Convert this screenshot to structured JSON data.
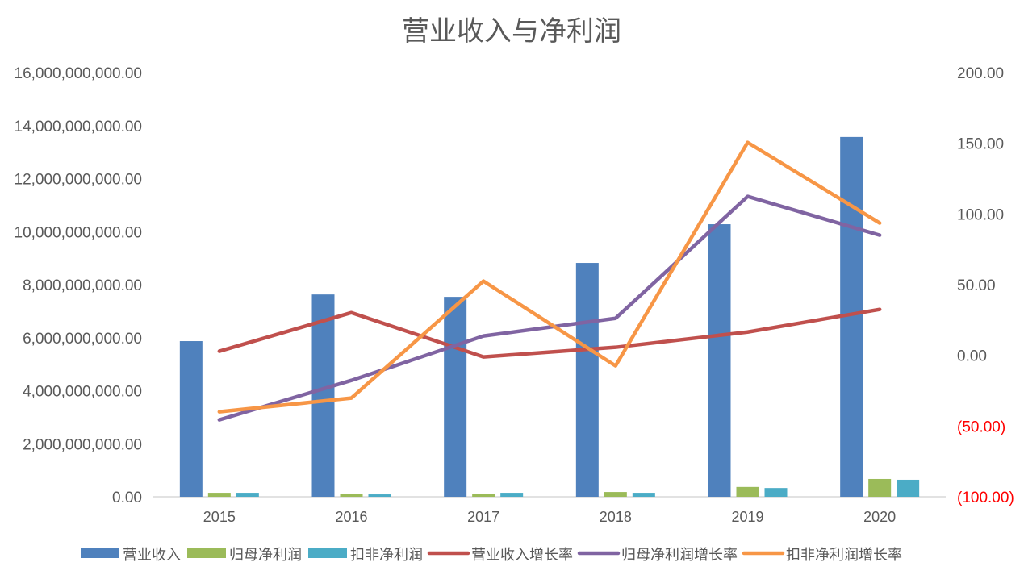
{
  "chart_data": {
    "type": "bar+line",
    "title": "营业收入与净利润",
    "categories": [
      "2015",
      "2016",
      "2017",
      "2018",
      "2019",
      "2020"
    ],
    "y_left": {
      "range": [
        0,
        16000000000
      ],
      "ticks": [
        "0.00",
        "2,000,000,000.00",
        "4,000,000,000.00",
        "6,000,000,000.00",
        "8,000,000,000.00",
        "10,000,000,000.00",
        "12,000,000,000.00",
        "14,000,000,000.00",
        "16,000,000,000.00"
      ]
    },
    "y_right": {
      "range": [
        -100,
        200
      ],
      "ticks": [
        "(100.00)",
        "(50.00)",
        "0.00",
        "50.00",
        "100.00",
        "150.00",
        "200.00"
      ],
      "negative_color": "#ff0000"
    },
    "grid": false,
    "legend_position": "bottom",
    "bar_series": [
      {
        "name": "营业收入",
        "color": "#4f81bd",
        "values": [
          5870000000,
          7630000000,
          7540000000,
          8820000000,
          10280000000,
          13570000000
        ]
      },
      {
        "name": "归母净利润",
        "color": "#9bbb59",
        "values": [
          150000000,
          120000000,
          120000000,
          180000000,
          370000000,
          670000000
        ]
      },
      {
        "name": "扣非净利润",
        "color": "#4bacc6",
        "values": [
          150000000,
          90000000,
          150000000,
          150000000,
          330000000,
          640000000
        ]
      }
    ],
    "line_series": [
      {
        "name": "营业收入增长率",
        "color": "#c0504d",
        "values": [
          2.9,
          30.2,
          -1.1,
          5.7,
          16.5,
          32.5
        ]
      },
      {
        "name": "归母净利润增长率",
        "color": "#8064a2",
        "values": [
          -45.6,
          -17.7,
          13.7,
          26.2,
          112.4,
          85.0
        ]
      },
      {
        "name": "扣非净利润增长率",
        "color": "#f79646",
        "values": [
          -39.9,
          -30.2,
          52.5,
          -7.4,
          150.6,
          93.6
        ]
      }
    ]
  }
}
